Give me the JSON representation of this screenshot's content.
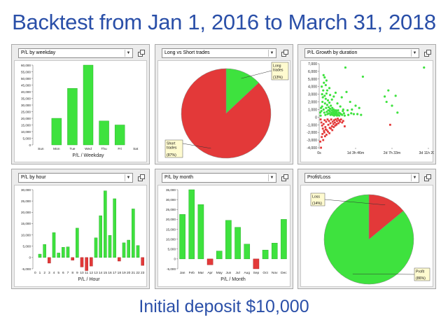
{
  "page": {
    "title": "Backtest from Jan 1, 2016 to March 31, 2018",
    "footer": "Initial deposit $10,000"
  },
  "colors": {
    "profit": "#3ee23e",
    "loss": "#e33939",
    "profit_dark": "#1fa51f",
    "loss_dark": "#a41c1c"
  },
  "chart_data": [
    {
      "id": "weekday",
      "type": "bar",
      "selector": "P/L by weekday",
      "xlabel": "P/L / Weekday",
      "categories": [
        "Sun",
        "Mon",
        "Tue",
        "Wed",
        "Thu",
        "Fri",
        "Sat"
      ],
      "values": [
        0,
        20000,
        42500,
        60000,
        18000,
        15000,
        0
      ],
      "ylim": [
        0,
        60000
      ],
      "yticks": [
        0,
        5000,
        10000,
        15000,
        20000,
        25000,
        30000,
        35000,
        40000,
        45000,
        50000,
        55000,
        60000
      ],
      "grid": false
    },
    {
      "id": "longshort",
      "type": "pie",
      "selector": "Long vs Short trades",
      "slices": [
        {
          "label": "Long trades",
          "value": 13,
          "pct_label": "(13%)"
        },
        {
          "label": "Short trades",
          "value": 87,
          "pct_label": "(87%)"
        }
      ]
    },
    {
      "id": "growth",
      "type": "scatter",
      "selector": "P/L Growth by duration",
      "ylim": [
        -4000,
        7000
      ],
      "yticks": [
        -4000,
        -3000,
        -2000,
        -1000,
        0,
        1000,
        2000,
        3000,
        4000,
        5000,
        6000,
        7000
      ],
      "xlim": [
        0,
        300
      ],
      "xticks": [
        {
          "pos": 0,
          "label": "0s"
        },
        {
          "pos": 100,
          "label": "1d 3h 46m"
        },
        {
          "pos": 200,
          "label": "2d 7h 33m"
        },
        {
          "pos": 300,
          "label": "3d 11h 20m"
        }
      ],
      "note": "x is trade duration in hours",
      "series": [
        {
          "name": "Profit",
          "points": [
            [
              4,
              200
            ],
            [
              6,
              800
            ],
            [
              8,
              1400
            ],
            [
              9,
              2000
            ],
            [
              10,
              2600
            ],
            [
              11,
              3500
            ],
            [
              12,
              1000
            ],
            [
              13,
              4500
            ],
            [
              14,
              600
            ],
            [
              15,
              5200
            ],
            [
              16,
              1800
            ],
            [
              17,
              300
            ],
            [
              18,
              2400
            ],
            [
              19,
              1200
            ],
            [
              20,
              3100
            ],
            [
              21,
              700
            ],
            [
              22,
              1600
            ],
            [
              23,
              400
            ],
            [
              24,
              2200
            ],
            [
              25,
              900
            ],
            [
              26,
              1300
            ],
            [
              27,
              500
            ],
            [
              28,
              1900
            ],
            [
              29,
              800
            ],
            [
              30,
              1100
            ],
            [
              31,
              300
            ],
            [
              32,
              1500
            ],
            [
              33,
              600
            ],
            [
              34,
              400
            ],
            [
              35,
              900
            ],
            [
              36,
              1200
            ],
            [
              37,
              300
            ],
            [
              38,
              700
            ],
            [
              39,
              500
            ],
            [
              40,
              1000
            ],
            [
              41,
              200
            ],
            [
              42,
              800
            ],
            [
              43,
              400
            ],
            [
              44,
              600
            ],
            [
              45,
              300
            ],
            [
              46,
              900
            ],
            [
              47,
              500
            ],
            [
              48,
              700
            ],
            [
              49,
              200
            ],
            [
              50,
              400
            ],
            [
              52,
              300
            ],
            [
              54,
              600
            ],
            [
              55,
              200
            ],
            [
              57,
              500
            ],
            [
              60,
              400
            ],
            [
              63,
              300
            ],
            [
              65,
              800
            ],
            [
              68,
              500
            ],
            [
              70,
              200
            ],
            [
              72,
              6500
            ],
            [
              75,
              3300
            ],
            [
              78,
              900
            ],
            [
              80,
              300
            ],
            [
              85,
              2000
            ],
            [
              88,
              500
            ],
            [
              90,
              1000
            ],
            [
              95,
              400
            ],
            [
              100,
              1500
            ],
            [
              105,
              400
            ],
            [
              110,
              1200
            ],
            [
              115,
              300
            ],
            [
              120,
              5300
            ],
            [
              7,
              4000
            ],
            [
              12,
              5500
            ],
            [
              20,
              4800
            ],
            [
              28,
              3800
            ],
            [
              8,
              3000
            ],
            [
              15,
              2800
            ],
            [
              22,
              3500
            ],
            [
              5,
              1200
            ],
            [
              3,
              600
            ],
            [
              18,
              4200
            ],
            [
              40,
              2700
            ],
            [
              50,
              1800
            ],
            [
              58,
              1400
            ],
            [
              62,
              2600
            ],
            [
              66,
              1000
            ],
            [
              45,
              3200
            ],
            [
              35,
              2300
            ],
            [
              30,
              2900
            ],
            [
              52,
              900
            ],
            [
              180,
              2700
            ],
            [
              185,
              2000
            ],
            [
              190,
              3500
            ],
            [
              200,
              1500
            ],
            [
              210,
              2800
            ],
            [
              215,
              600
            ],
            [
              288,
              6500
            ]
          ]
        },
        {
          "name": "Loss",
          "points": [
            [
              4,
              -300
            ],
            [
              6,
              -700
            ],
            [
              8,
              -1100
            ],
            [
              10,
              -1500
            ],
            [
              12,
              -900
            ],
            [
              14,
              -2000
            ],
            [
              15,
              -400
            ],
            [
              17,
              -1300
            ],
            [
              19,
              -600
            ],
            [
              21,
              -1700
            ],
            [
              23,
              -300
            ],
            [
              25,
              -1000
            ],
            [
              27,
              -500
            ],
            [
              29,
              -1400
            ],
            [
              31,
              -800
            ],
            [
              33,
              -300
            ],
            [
              35,
              -1200
            ],
            [
              37,
              -600
            ],
            [
              39,
              -900
            ],
            [
              41,
              -400
            ],
            [
              43,
              -700
            ],
            [
              45,
              -300
            ],
            [
              47,
              -1000
            ],
            [
              49,
              -500
            ],
            [
              51,
              -200
            ],
            [
              53,
              -800
            ],
            [
              55,
              -400
            ],
            [
              57,
              -600
            ],
            [
              60,
              -300
            ],
            [
              63,
              -700
            ],
            [
              66,
              -500
            ],
            [
              70,
              -1200
            ],
            [
              3,
              -3200
            ],
            [
              5,
              -4000
            ],
            [
              7,
              -2600
            ],
            [
              9,
              -2200
            ],
            [
              11,
              -3000
            ],
            [
              13,
              -1800
            ],
            [
              16,
              -2500
            ],
            [
              18,
              -1600
            ],
            [
              20,
              -2300
            ],
            [
              24,
              -1900
            ],
            [
              28,
              -2100
            ],
            [
              32,
              -1500
            ],
            [
              36,
              -1700
            ],
            [
              40,
              -1300
            ],
            [
              44,
              -1100
            ],
            [
              48,
              -900
            ],
            [
              195,
              -1000
            ]
          ]
        }
      ]
    },
    {
      "id": "hour",
      "type": "bar",
      "selector": "P/L by hour",
      "xlabel": "P/L / Hour",
      "categories": [
        "0",
        "1",
        "2",
        "3",
        "4",
        "5",
        "6",
        "7",
        "8",
        "9",
        "10",
        "11",
        "12",
        "13",
        "14",
        "15",
        "16",
        "17",
        "18",
        "19",
        "20",
        "21",
        "22",
        "23"
      ],
      "values": [
        0,
        1500,
        5800,
        -2500,
        11000,
        2000,
        4500,
        4700,
        -1200,
        13000,
        -4200,
        -5800,
        -3800,
        8700,
        18500,
        29500,
        9800,
        26000,
        -1600,
        6500,
        7700,
        21500,
        5300,
        -3500
      ],
      "ylim": [
        -5000,
        30000
      ],
      "yticks": [
        -5000,
        0,
        5000,
        10000,
        15000,
        20000,
        25000,
        30000
      ]
    },
    {
      "id": "month",
      "type": "bar",
      "selector": "P/L by month",
      "xlabel": "P/L / Month",
      "categories": [
        "Jan",
        "Feb",
        "Mar",
        "Apr",
        "May",
        "Jun",
        "Jul",
        "Aug",
        "Sep",
        "Oct",
        "Nov",
        "Dec"
      ],
      "values": [
        22500,
        35000,
        27500,
        -3000,
        4000,
        19500,
        16000,
        7500,
        -5000,
        4500,
        8000,
        20000
      ],
      "ylim": [
        -5000,
        35000
      ],
      "yticks": [
        -5000,
        0,
        5000,
        10000,
        15000,
        20000,
        25000,
        30000,
        35000
      ]
    },
    {
      "id": "profitloss",
      "type": "pie",
      "selector": "Profit/Loss",
      "slices": [
        {
          "label": "Loss",
          "value": 14,
          "pct_label": "(14%)"
        },
        {
          "label": "Profit",
          "value": 86,
          "pct_label": "(86%)"
        }
      ]
    }
  ]
}
